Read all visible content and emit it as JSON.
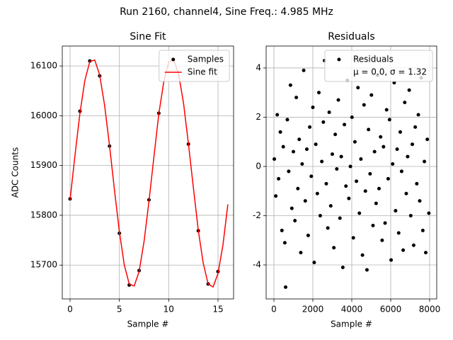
{
  "title": "Run 2160, channel4, Sine Freq.: 4.985 MHz",
  "chart_data": [
    {
      "type": "scatter",
      "title": "Sine Fit",
      "x_label": "Sample #",
      "y_label": "ADC Counts",
      "xlim": [
        -0.79,
        16.58
      ],
      "ylim": [
        15632,
        16140
      ],
      "xticks": [
        0,
        5,
        10,
        15
      ],
      "yticks": [
        15700,
        15800,
        15900,
        16000,
        16100
      ],
      "grid": true,
      "legend": "upper right",
      "series": [
        {
          "name": "Samples",
          "kind": "scatter",
          "color": "#000000",
          "x": [
            0,
            1,
            2,
            3,
            4,
            5,
            6,
            7,
            8,
            9,
            12,
            13,
            14,
            15
          ],
          "values": [
            15833,
            16009,
            16110,
            16080,
            15939,
            15764,
            15660,
            15689,
            15831,
            16005,
            15943,
            15769,
            15662,
            15687
          ]
        },
        {
          "name": "Sine fit",
          "kind": "line",
          "color": "#ff0000",
          "x": [
            0,
            0.5,
            1,
            1.5,
            2,
            2.5,
            3,
            3.5,
            4,
            4.5,
            5,
            5.5,
            6,
            6.5,
            7,
            7.5,
            8,
            8.5,
            9,
            9.5,
            10,
            10.5,
            11,
            11.5,
            12,
            12.5,
            13,
            13.5,
            14,
            14.5,
            15,
            15.5,
            16
          ],
          "values": [
            15831,
            15921,
            16005,
            16071,
            16109,
            16112,
            16082,
            16021,
            15940,
            15851,
            15767,
            15700,
            15662,
            15658,
            15687,
            15747,
            15828,
            15917,
            16004,
            16068,
            16108,
            16113,
            16084,
            16026,
            15944,
            15856,
            15770,
            15704,
            15662,
            15656,
            15683,
            15740,
            15822
          ]
        }
      ]
    },
    {
      "type": "scatter",
      "title": "Residuals",
      "x_label": "Sample #",
      "xlim": [
        -400,
        8364
      ],
      "ylim": [
        -5.38,
        4.89
      ],
      "xticks": [
        0,
        2000,
        4000,
        6000,
        8000
      ],
      "yticks": [
        -4,
        -2,
        0,
        2,
        4
      ],
      "grid": true,
      "legend": "upper right",
      "series": [
        {
          "name": "Residuals",
          "note": "μ = 0.0, σ = 1.32",
          "kind": "scatter",
          "color": "#000000",
          "x": [
            20,
            95,
            170,
            240,
            330,
            410,
            480,
            560,
            600,
            690,
            760,
            850,
            920,
            1000,
            1080,
            1150,
            1230,
            1300,
            1380,
            1450,
            1530,
            1610,
            1690,
            1760,
            1840,
            1920,
            2000,
            2070,
            2150,
            2230,
            2310,
            2380,
            2460,
            2540,
            2600,
            2690,
            2770,
            2840,
            2920,
            3000,
            3080,
            3150,
            3230,
            3310,
            3390,
            3460,
            3540,
            3620,
            3700,
            3770,
            3850,
            3930,
            4010,
            4080,
            4160,
            4240,
            4320,
            4390,
            4470,
            4550,
            4630,
            4700,
            4780,
            4860,
            4940,
            5010,
            5090,
            5170,
            5250,
            5320,
            5400,
            5480,
            5560,
            5630,
            5710,
            5790,
            5870,
            5940,
            6020,
            6100,
            6180,
            6250,
            6330,
            6410,
            6490,
            6560,
            6640,
            6720,
            6800,
            6870,
            6950,
            7030,
            7110,
            7180,
            7260,
            7340,
            7420,
            7490,
            7570,
            7650,
            7730,
            7800,
            7880,
            7960
          ],
          "values": [
            0.3,
            -1.2,
            2.1,
            -0.5,
            1.4,
            -2.6,
            0.8,
            -3.1,
            -4.9,
            1.9,
            -0.2,
            3.3,
            -1.7,
            0.6,
            -2.2,
            2.8,
            -0.9,
            1.1,
            -3.5,
            0.1,
            3.9,
            -1.4,
            0.7,
            -2.8,
            1.6,
            -0.4,
            2.4,
            -3.9,
            0.9,
            -1.1,
            3.0,
            -2.0,
            0.2,
            1.8,
            4.3,
            -0.7,
            -2.5,
            2.2,
            -1.6,
            0.5,
            -3.3,
            1.3,
            -0.1,
            2.7,
            -2.1,
            0.4,
            -4.1,
            1.7,
            -0.8,
            3.5,
            -1.3,
            0.0,
            2.0,
            -2.9,
            1.0,
            -0.6,
            3.2,
            -1.9,
            0.3,
            -3.6,
            2.5,
            -1.0,
            -4.2,
            1.5,
            -0.3,
            2.9,
            -2.4,
            0.6,
            -1.5,
            3.7,
            -0.9,
            1.2,
            -3.0,
            0.8,
            -2.3,
            2.3,
            -0.5,
            1.9,
            -3.8,
            0.1,
            3.4,
            -1.8,
            0.7,
            -2.7,
            1.4,
            -0.2,
            -3.4,
            2.6,
            -1.1,
            0.4,
            3.1,
            -2.0,
            0.9,
            -3.2,
            1.6,
            -0.7,
            2.1,
            -1.4,
            3.6,
            -2.6,
            0.2,
            -3.5,
            1.1,
            -1.9
          ]
        }
      ]
    }
  ]
}
